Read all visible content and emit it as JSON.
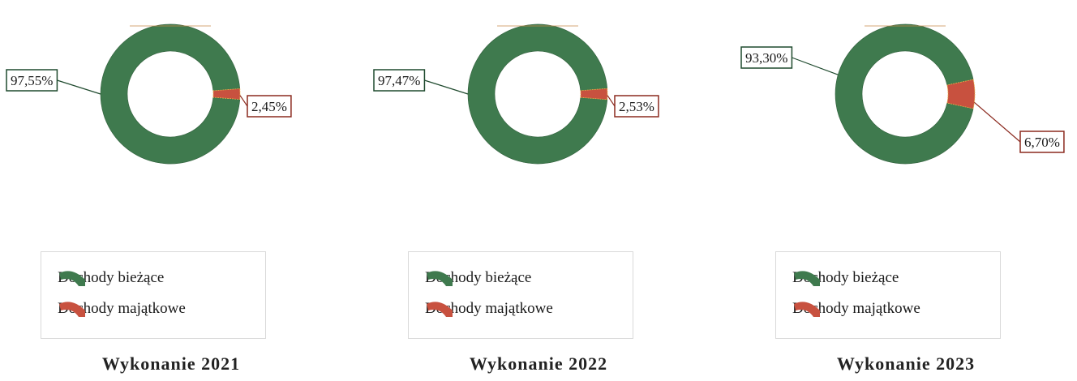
{
  "chart_data": [
    {
      "type": "pie",
      "title": "Wykonanie 2021",
      "categories": [
        "Dochody bieżące",
        "Dochody majątkowe"
      ],
      "values": [
        97.55,
        2.45
      ],
      "data_labels": [
        "97,55%",
        "2,45%"
      ],
      "legend": [
        "Dochody bieżące",
        "Dochody majątkowe"
      ],
      "legend_position": "bottom"
    },
    {
      "type": "pie",
      "title": "Wykonanie 2022",
      "categories": [
        "Dochody bieżące",
        "Dochody majątkowe"
      ],
      "values": [
        97.47,
        2.53
      ],
      "data_labels": [
        "97,47%",
        "2,53%"
      ],
      "legend": [
        "Dochody bieżące",
        "Dochody majątkowe"
      ],
      "legend_position": "bottom"
    },
    {
      "type": "pie",
      "title": "Wykonanie 2023",
      "categories": [
        "Dochody bieżące",
        "Dochody majątkowe"
      ],
      "values": [
        93.3,
        6.7
      ],
      "data_labels": [
        "93,30%",
        "6,70%"
      ],
      "legend": [
        "Dochody bieżące",
        "Dochody majątkowe"
      ],
      "legend_position": "bottom"
    }
  ],
  "colors": {
    "Dochody bieżące": "#3f7a4e",
    "Dochody majątkowe": "#c8513f",
    "label_border_0": "#1f4a2e",
    "label_border_1": "#8b2a1f"
  }
}
